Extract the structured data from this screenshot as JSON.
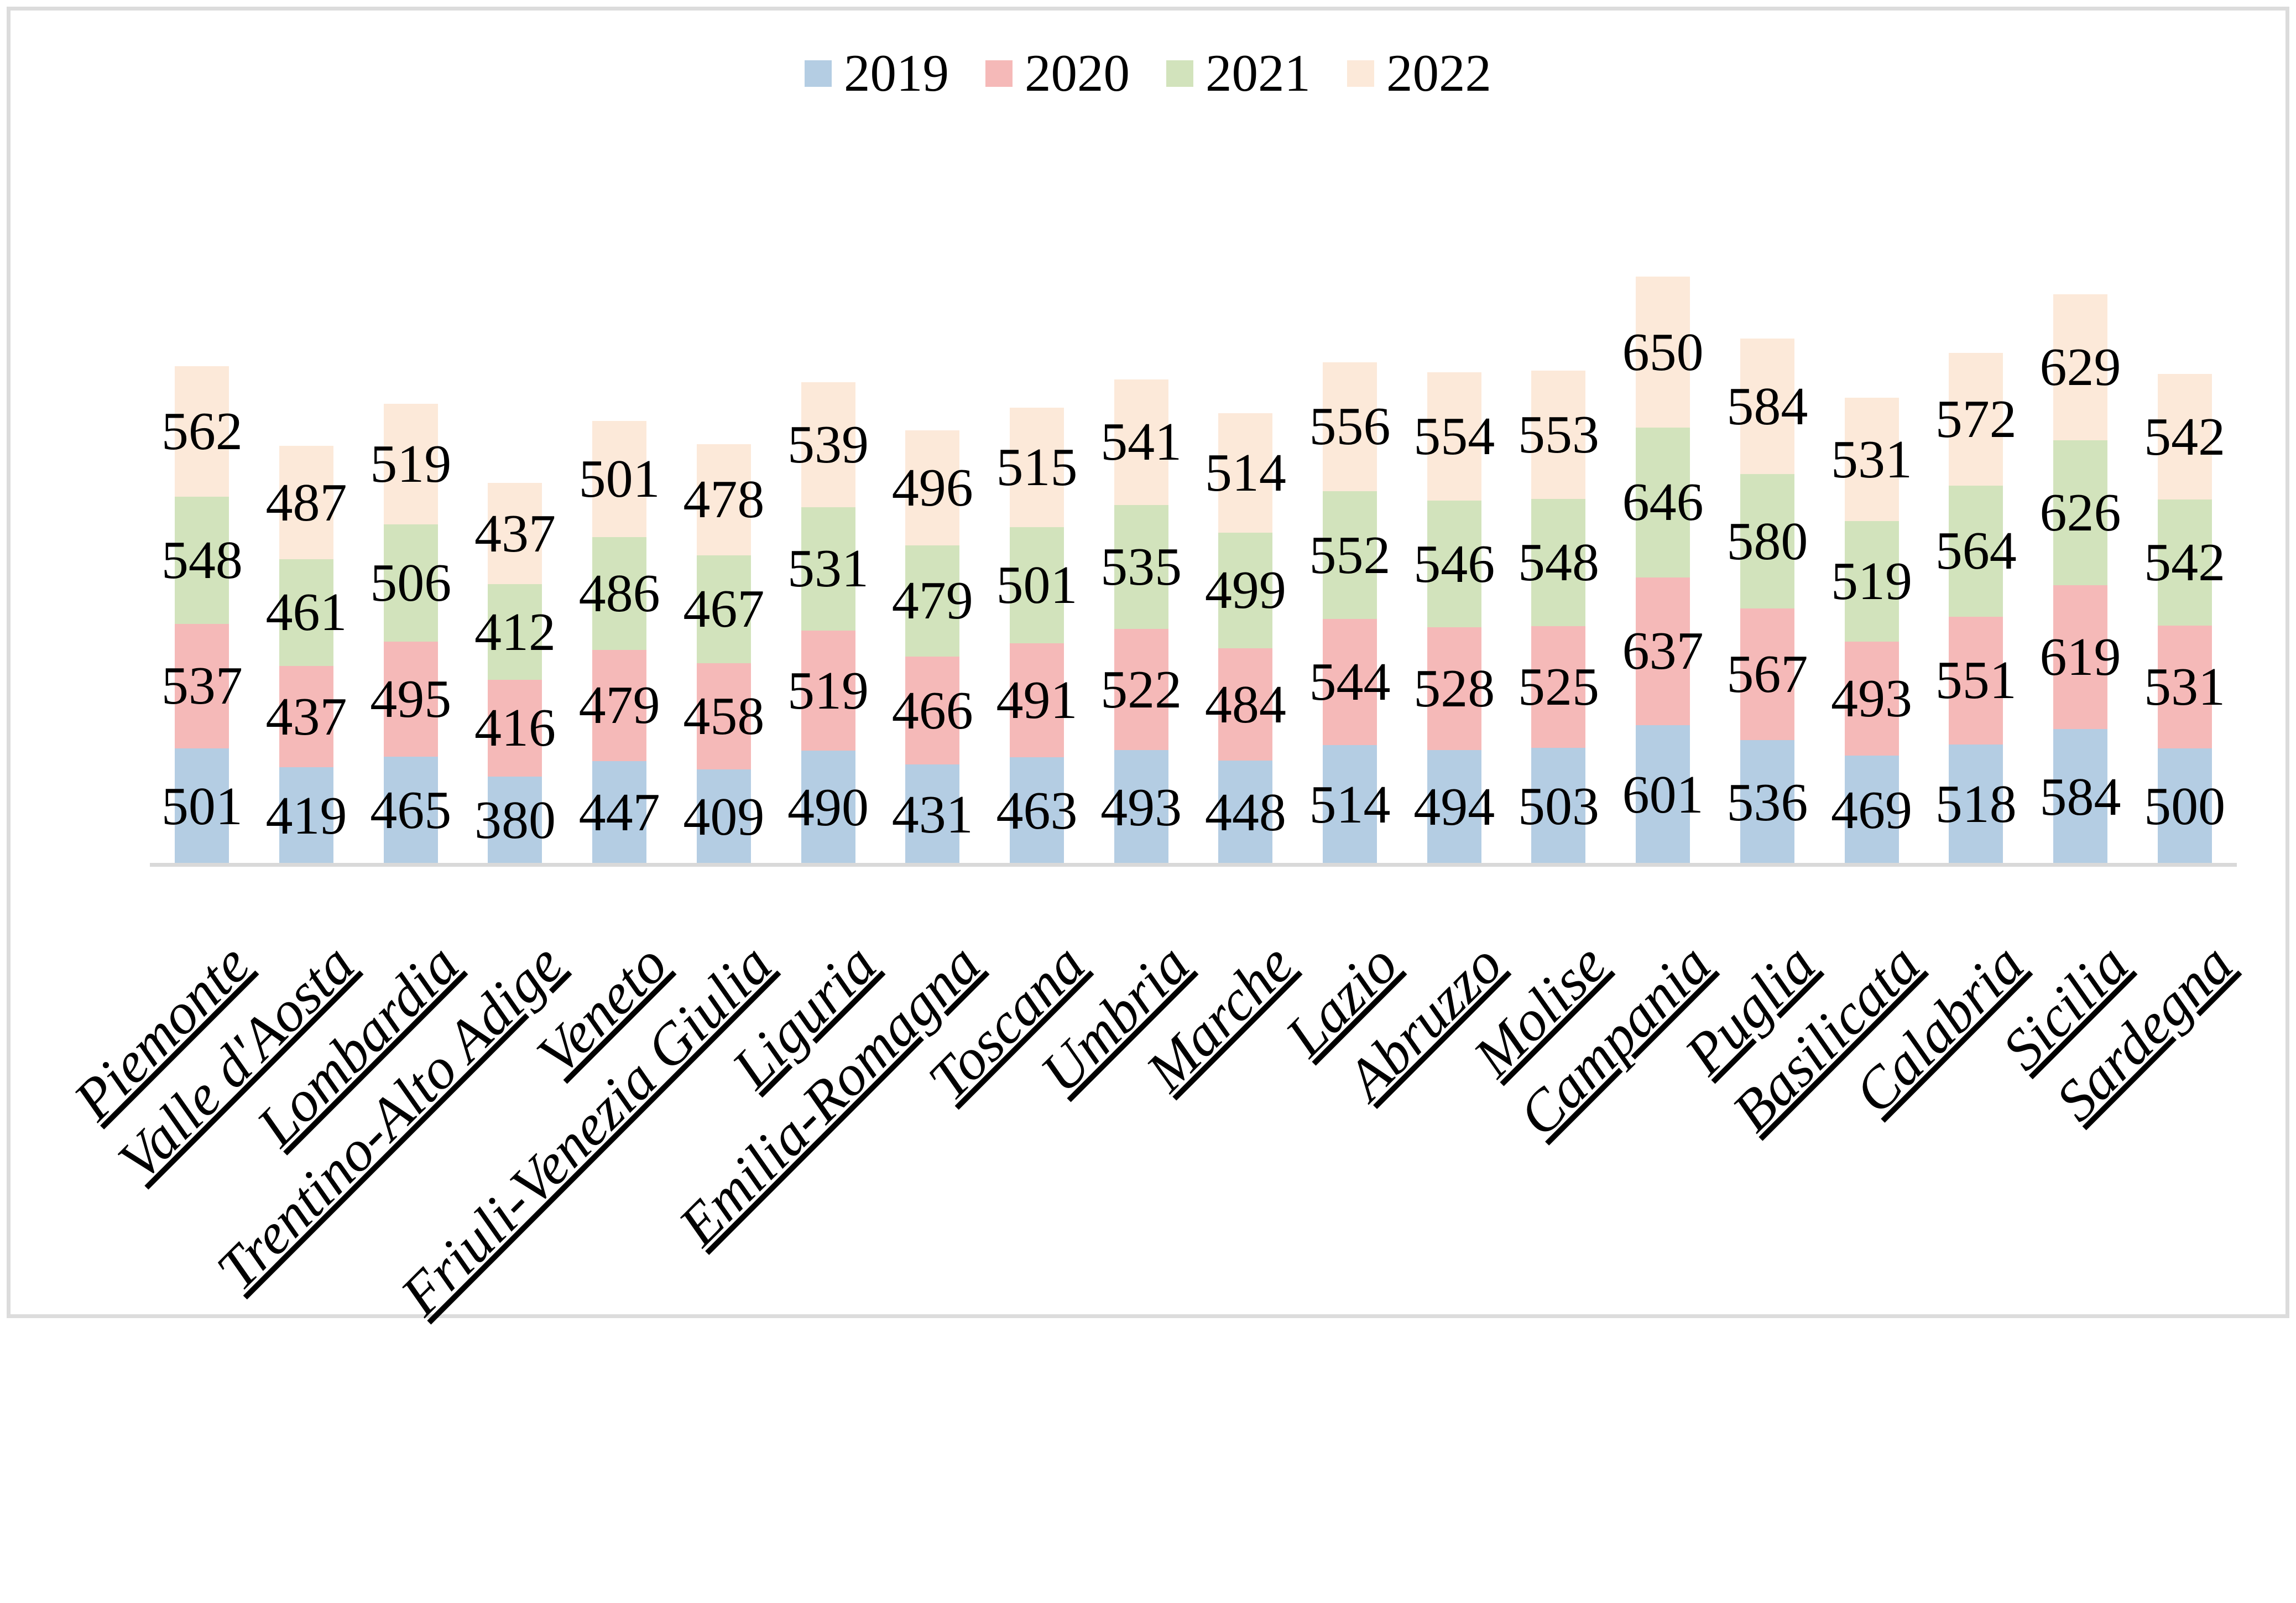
{
  "chart_data": {
    "type": "bar",
    "stacked": true,
    "title": "",
    "xlabel": "",
    "ylabel": "",
    "grid": false,
    "legend_position": "top",
    "data_labels": "inside-center",
    "axis_line_color": "#D9D9D9",
    "frame_border_color": "#DCDCDC",
    "label_color": "#000000",
    "categories": [
      "Piemonte",
      "Valle d'Aosta",
      "Lombardia",
      "Trentino-Alto Adige",
      "Veneto",
      "Friuli-Venezia Giulia",
      "Liguria",
      "Emilia-Romagna",
      "Toscana",
      "Umbria",
      "Marche",
      "Lazio",
      "Abruzzo",
      "Molise",
      "Campania",
      "Puglia",
      "Basilicata",
      "Calabria",
      "Sicilia",
      "Sardegna"
    ],
    "series": [
      {
        "name": "2019",
        "color": "#B4CDE3",
        "values": [
          501,
          419,
          465,
          380,
          447,
          409,
          490,
          431,
          463,
          493,
          448,
          514,
          494,
          503,
          601,
          536,
          469,
          518,
          584,
          500
        ]
      },
      {
        "name": "2020",
        "color": "#F5B9B8",
        "values": [
          537,
          437,
          495,
          416,
          479,
          458,
          519,
          466,
          491,
          522,
          484,
          544,
          528,
          525,
          637,
          567,
          493,
          551,
          619,
          531
        ]
      },
      {
        "name": "2021",
        "color": "#D2E3BC",
        "values": [
          548,
          461,
          506,
          412,
          486,
          467,
          531,
          479,
          501,
          535,
          499,
          552,
          546,
          548,
          646,
          580,
          519,
          564,
          626,
          542
        ]
      },
      {
        "name": "2022",
        "color": "#FCE9D9",
        "values": [
          562,
          487,
          519,
          437,
          501,
          478,
          539,
          496,
          515,
          541,
          514,
          556,
          554,
          553,
          650,
          584,
          531,
          572,
          629,
          542
        ]
      }
    ]
  }
}
